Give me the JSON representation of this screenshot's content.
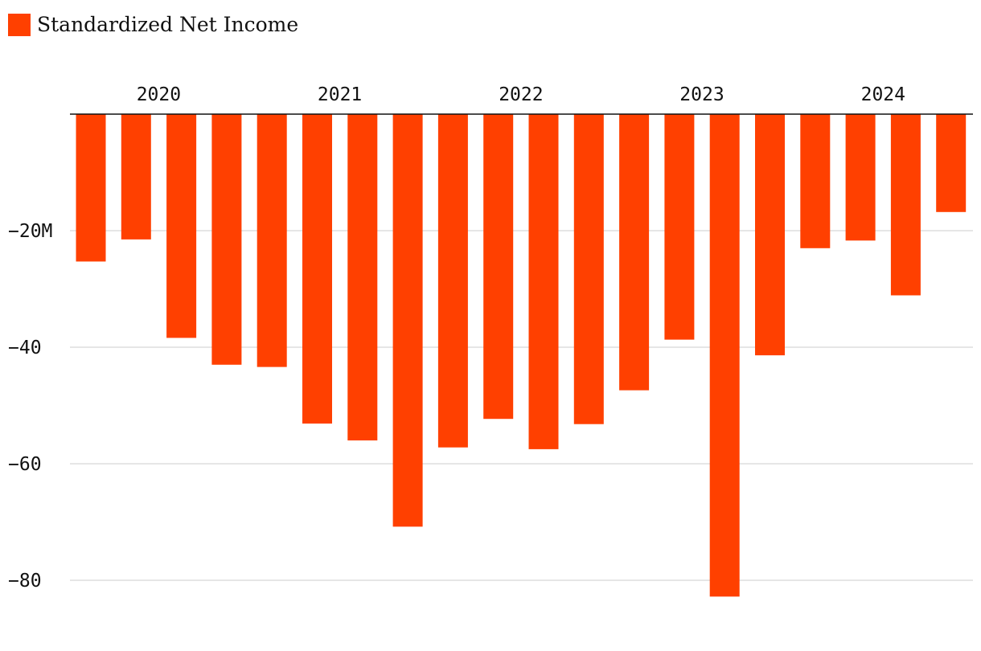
{
  "legend": {
    "label": "Standardized Net Income",
    "color": "#ff4000"
  },
  "chart_data": {
    "type": "bar",
    "categories": [
      "2020 Q1",
      "2020 Q2",
      "2020 Q3",
      "2020 Q4",
      "2021 Q1",
      "2021 Q2",
      "2021 Q3",
      "2021 Q4",
      "2022 Q1",
      "2022 Q2",
      "2022 Q3",
      "2022 Q4",
      "2023 Q1",
      "2023 Q2",
      "2023 Q3",
      "2023 Q4",
      "2024 Q1",
      "2024 Q2",
      "2024 Q3",
      "2024 Q4"
    ],
    "series": [
      {
        "name": "Standardized Net Income",
        "color": "#ff4000",
        "values": [
          -25.3,
          -21.5,
          -38.4,
          -43.0,
          -43.4,
          -53.1,
          -56.0,
          -70.8,
          -57.2,
          -52.3,
          -57.5,
          -53.2,
          -47.4,
          -38.7,
          -82.8,
          -41.4,
          -23.0,
          -21.7,
          -31.1,
          -16.8
        ]
      }
    ],
    "x_axis": {
      "position": "top",
      "year_labels": [
        "2020",
        "2021",
        "2022",
        "2023",
        "2024"
      ]
    },
    "y_axis": {
      "ylim": [
        -85,
        0
      ],
      "ticks": [
        {
          "value": -20,
          "label": "−20M"
        },
        {
          "value": -40,
          "label": "−40"
        },
        {
          "value": -60,
          "label": "−60"
        },
        {
          "value": -80,
          "label": "−80"
        }
      ]
    },
    "grid": true,
    "gridline_color": "#dddddd",
    "axis_line_color": "#111111"
  }
}
